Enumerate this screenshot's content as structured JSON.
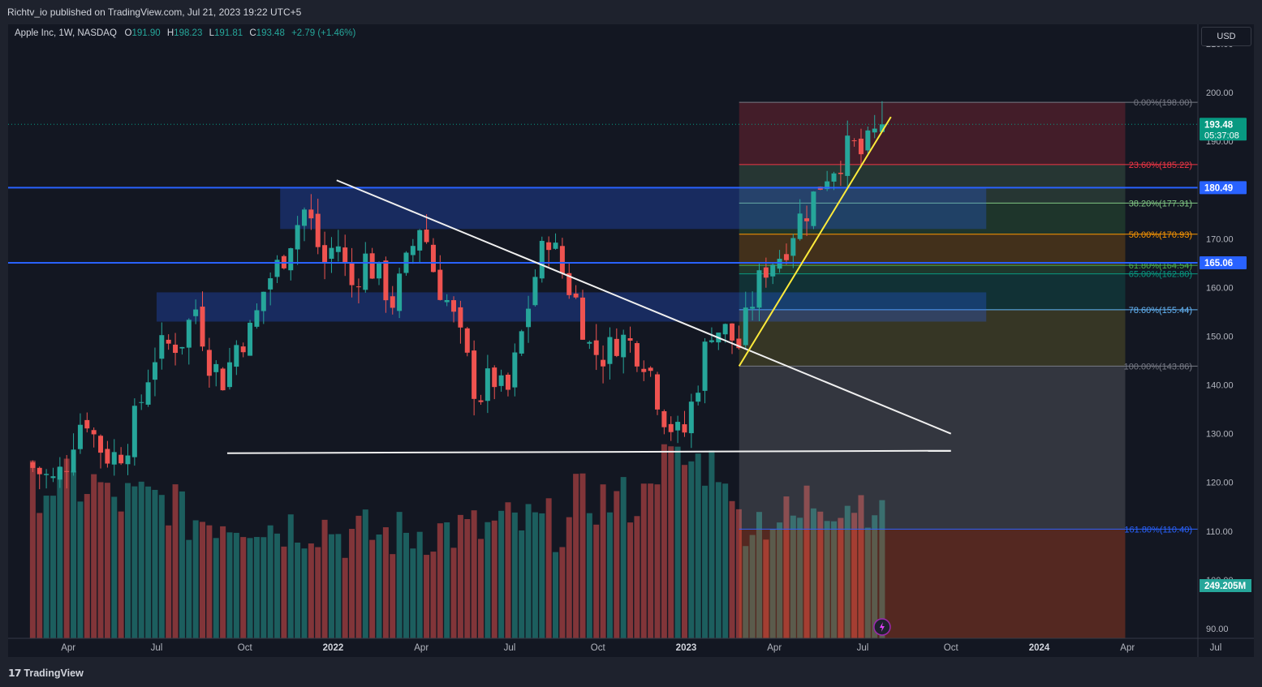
{
  "header": {
    "publisher_line": "Richtv_io published on TradingView.com, Jul 21, 2023 19:22 UTC+5",
    "symbol_line": "Apple Inc, 1W, NASDAQ",
    "ohlc": [
      {
        "key": "O",
        "value": "191.90"
      },
      {
        "key": "H",
        "value": "198.23"
      },
      {
        "key": "L",
        "value": "191.81"
      },
      {
        "key": "C",
        "value": "193.48"
      }
    ],
    "change": "+2.79 (+1.46%)",
    "currency": "USD"
  },
  "footer": {
    "brand": "TradingView",
    "brand_mark": "17"
  },
  "colors": {
    "up": "#26a69a",
    "down": "#ef5350",
    "background": "#131722",
    "frame": "#1e222d",
    "h_line": "#2962ff",
    "trend": "#ffffff",
    "support": "#ffeb3b"
  },
  "chart_data": {
    "type": "candlestick",
    "symbol": "AAPL",
    "interval": "1W",
    "ylim": [
      88,
      214
    ],
    "y_ticks": [
      90,
      100,
      110,
      120,
      130,
      140,
      150,
      160,
      170,
      180,
      190,
      200,
      210
    ],
    "x_tick_labels": [
      {
        "label": "Apr",
        "t": 0.0
      },
      {
        "label": "Jul",
        "t": 0.25
      },
      {
        "label": "Oct",
        "t": 0.5
      },
      {
        "label": "2022",
        "t": 0.75
      },
      {
        "label": "Apr",
        "t": 1.0
      },
      {
        "label": "Jul",
        "t": 1.25
      },
      {
        "label": "Oct",
        "t": 1.5
      },
      {
        "label": "2023",
        "t": 1.75
      },
      {
        "label": "Apr",
        "t": 2.0
      },
      {
        "label": "Jul",
        "t": 2.25
      },
      {
        "label": "Oct",
        "t": 2.5
      },
      {
        "label": "2024",
        "t": 2.75
      },
      {
        "label": "Apr",
        "t": 3.0
      },
      {
        "label": "Jul",
        "t": 3.25
      }
    ],
    "t_range": [
      -0.12,
      3.25
    ],
    "last_candle_t": 2.305,
    "close_path": [
      {
        "t": -0.12,
        "v": 124
      },
      {
        "t": -0.08,
        "v": 122
      },
      {
        "t": -0.04,
        "v": 120
      },
      {
        "t": 0.0,
        "v": 125
      },
      {
        "t": 0.02,
        "v": 131
      },
      {
        "t": 0.05,
        "v": 134
      },
      {
        "t": 0.08,
        "v": 128
      },
      {
        "t": 0.12,
        "v": 125
      },
      {
        "t": 0.16,
        "v": 127
      },
      {
        "t": 0.2,
        "v": 135
      },
      {
        "t": 0.24,
        "v": 146
      },
      {
        "t": 0.28,
        "v": 148
      },
      {
        "t": 0.32,
        "v": 149
      },
      {
        "t": 0.36,
        "v": 156
      },
      {
        "t": 0.4,
        "v": 145
      },
      {
        "t": 0.44,
        "v": 141
      },
      {
        "t": 0.48,
        "v": 149
      },
      {
        "t": 0.52,
        "v": 151
      },
      {
        "t": 0.56,
        "v": 161
      },
      {
        "t": 0.6,
        "v": 165
      },
      {
        "t": 0.64,
        "v": 172
      },
      {
        "t": 0.67,
        "v": 176
      },
      {
        "t": 0.7,
        "v": 171
      },
      {
        "t": 0.72,
        "v": 164
      },
      {
        "t": 0.76,
        "v": 170
      },
      {
        "t": 0.8,
        "v": 160
      },
      {
        "t": 0.84,
        "v": 166
      },
      {
        "t": 0.88,
        "v": 162
      },
      {
        "t": 0.92,
        "v": 157
      },
      {
        "t": 0.96,
        "v": 165
      },
      {
        "t": 1.0,
        "v": 174
      },
      {
        "t": 1.04,
        "v": 162
      },
      {
        "t": 1.08,
        "v": 156
      },
      {
        "t": 1.12,
        "v": 147
      },
      {
        "t": 1.16,
        "v": 137
      },
      {
        "t": 1.2,
        "v": 142
      },
      {
        "t": 1.24,
        "v": 137
      },
      {
        "t": 1.28,
        "v": 149
      },
      {
        "t": 1.32,
        "v": 162
      },
      {
        "t": 1.36,
        "v": 171
      },
      {
        "t": 1.4,
        "v": 163
      },
      {
        "t": 1.44,
        "v": 157
      },
      {
        "t": 1.48,
        "v": 147
      },
      {
        "t": 1.52,
        "v": 146
      },
      {
        "t": 1.56,
        "v": 150
      },
      {
        "t": 1.6,
        "v": 148
      },
      {
        "t": 1.64,
        "v": 145
      },
      {
        "t": 1.68,
        "v": 135
      },
      {
        "t": 1.72,
        "v": 130
      },
      {
        "t": 1.74,
        "v": 129
      },
      {
        "t": 1.78,
        "v": 140
      },
      {
        "t": 1.82,
        "v": 152
      },
      {
        "t": 1.86,
        "v": 151
      },
      {
        "t": 1.9,
        "v": 148
      },
      {
        "t": 1.94,
        "v": 158
      },
      {
        "t": 1.98,
        "v": 165
      },
      {
        "t": 2.02,
        "v": 167
      },
      {
        "t": 2.06,
        "v": 173
      },
      {
        "t": 2.1,
        "v": 177
      },
      {
        "t": 2.14,
        "v": 183
      },
      {
        "t": 2.18,
        "v": 186
      },
      {
        "t": 2.22,
        "v": 189
      },
      {
        "t": 2.25,
        "v": 187
      },
      {
        "t": 2.28,
        "v": 191
      },
      {
        "t": 2.305,
        "v": 193.48
      }
    ],
    "last": {
      "open": 191.9,
      "high": 198.23,
      "low": 191.81,
      "close": 193.48
    },
    "volume": {
      "current_label": "249.205M",
      "profile": [
        0.62,
        0.5,
        0.35,
        0.3,
        0.22,
        0.25,
        0.3,
        0.5,
        0.8,
        0.35,
        0.5,
        0.3
      ]
    },
    "horizontal_levels": [
      {
        "name": "Resistance",
        "value": 180.49,
        "label": "180.49"
      },
      {
        "name": "Support",
        "value": 165.06,
        "label": "165.06"
      }
    ],
    "zones": [
      {
        "t_start": 0.6,
        "t_end": 2.6,
        "v_low": 172,
        "v_high": 180.5
      },
      {
        "t_start": 0.25,
        "t_end": 2.6,
        "v_low": 153,
        "v_high": 159
      }
    ],
    "trendlines": [
      {
        "name": "downtrend",
        "from": {
          "t": 0.76,
          "v": 182
        },
        "to": {
          "t": 2.5,
          "v": 130
        }
      },
      {
        "name": "floor",
        "from": {
          "t": 0.45,
          "v": 126
        },
        "to": {
          "t": 2.5,
          "v": 126.5
        }
      },
      {
        "name": "uptrend",
        "from": {
          "t": 1.9,
          "v": 143.86
        },
        "to": {
          "t": 2.33,
          "v": 195
        }
      }
    ],
    "fibonacci": {
      "t_start": 1.9,
      "t_end": 2.35,
      "levels": [
        {
          "label": "0.00%(198.00)",
          "value": 198.0,
          "color": "#787b86"
        },
        {
          "label": "23.60%(185.22)",
          "value": 185.22,
          "color": "#f23645"
        },
        {
          "label": "38.20%(177.31)",
          "value": 177.31,
          "color": "#81c784"
        },
        {
          "label": "50.00%(170.93)",
          "value": 170.93,
          "color": "#ff9800"
        },
        {
          "label": "61.80%(164.54)",
          "value": 164.54,
          "color": "#4caf50"
        },
        {
          "label": "65.00%(162.80)",
          "value": 162.8,
          "color": "#089981"
        },
        {
          "label": "78.60%(155.44)",
          "value": 155.44,
          "color": "#64b5f6"
        },
        {
          "label": "100.00%(143.86)",
          "value": 143.86,
          "color": "#787b86"
        },
        {
          "label": "161.80%(110.40)",
          "value": 110.4,
          "color": "#2962ff"
        }
      ]
    },
    "price_labels": [
      {
        "value": 193.48,
        "text": "193.48",
        "subtext": "05:37:08",
        "color": "#089981"
      },
      {
        "value": 180.49,
        "text": "180.49",
        "color": "#2962ff"
      },
      {
        "value": 165.06,
        "text": "165.06",
        "color": "#2962ff"
      }
    ]
  }
}
